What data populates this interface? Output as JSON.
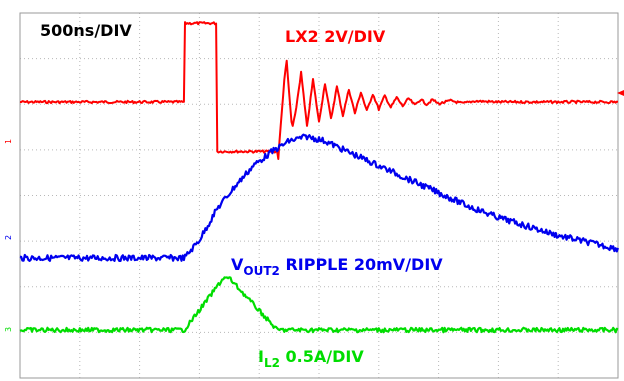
{
  "chart_data": {
    "type": "line",
    "title": "",
    "timebase_label": "500ns/DIV",
    "x_divisions": 10,
    "y_divisions": 8,
    "grid": true,
    "trigger_marker": "right-edge",
    "series": [
      {
        "name": "LX2 2V/DIV",
        "label_main": "LX2 2V/DIV",
        "color": "#ff0000",
        "channel_marker": "1",
        "points": [
          [
            0,
            0
          ],
          [
            2.75,
            0
          ],
          [
            2.76,
            1.75
          ],
          [
            3.28,
            1.75
          ],
          [
            3.29,
            -1.1
          ],
          [
            4.3,
            -1.1
          ],
          [
            4.32,
            -1.25
          ],
          [
            4.35,
            -0.7
          ],
          [
            4.38,
            -0.2
          ],
          [
            4.42,
            0.5
          ],
          [
            4.46,
            0.9
          ],
          [
            4.5,
            0.2
          ],
          [
            4.55,
            -0.6
          ],
          [
            4.6,
            -0.3
          ],
          [
            4.7,
            0.65
          ],
          [
            4.8,
            -0.55
          ],
          [
            4.9,
            0.5
          ],
          [
            5.0,
            -0.45
          ],
          [
            5.1,
            0.42
          ],
          [
            5.2,
            -0.38
          ],
          [
            5.3,
            0.34
          ],
          [
            5.4,
            -0.3
          ],
          [
            5.5,
            0.28
          ],
          [
            5.6,
            -0.25
          ],
          [
            5.7,
            0.22
          ],
          [
            5.8,
            -0.2
          ],
          [
            5.9,
            0.18
          ],
          [
            6.0,
            -0.16
          ],
          [
            6.1,
            0.14
          ],
          [
            6.2,
            -0.12
          ],
          [
            6.3,
            0.1
          ],
          [
            6.4,
            -0.09
          ],
          [
            6.5,
            0.08
          ],
          [
            6.6,
            -0.07
          ],
          [
            6.7,
            0.06
          ],
          [
            6.8,
            -0.05
          ],
          [
            6.9,
            0.05
          ],
          [
            7.0,
            -0.04
          ],
          [
            7.2,
            0.03
          ],
          [
            7.4,
            -0.03
          ],
          [
            7.6,
            0.02
          ],
          [
            8.0,
            0
          ],
          [
            10,
            0
          ]
        ]
      },
      {
        "name": "VOUT2 RIPPLE 20mV/DIV",
        "label_main": "V",
        "label_sub": "OUT2",
        "label_rest": " RIPPLE 20mV/DIV",
        "color": "#0000ee",
        "channel_marker": "2",
        "points": [
          [
            0,
            0
          ],
          [
            2.75,
            0
          ],
          [
            3.0,
            0.4
          ],
          [
            3.3,
            1.1
          ],
          [
            3.6,
            1.6
          ],
          [
            3.9,
            2.05
          ],
          [
            4.2,
            2.35
          ],
          [
            4.5,
            2.6
          ],
          [
            4.8,
            2.7
          ],
          [
            5.1,
            2.6
          ],
          [
            5.5,
            2.35
          ],
          [
            6.0,
            2.05
          ],
          [
            6.5,
            1.75
          ],
          [
            7.0,
            1.45
          ],
          [
            7.5,
            1.15
          ],
          [
            8.0,
            0.9
          ],
          [
            8.5,
            0.7
          ],
          [
            9.0,
            0.5
          ],
          [
            9.5,
            0.35
          ],
          [
            10,
            0.2
          ]
        ]
      },
      {
        "name": "IL2 0.5A/DIV",
        "label_main": "I",
        "label_sub": "L2",
        "label_rest": " 0.5A/DIV",
        "color": "#00dd00",
        "channel_marker": "3",
        "points": [
          [
            0,
            0
          ],
          [
            2.75,
            0
          ],
          [
            3.4,
            1.15
          ],
          [
            3.5,
            1.15
          ],
          [
            4.3,
            0
          ],
          [
            10,
            0
          ]
        ]
      }
    ]
  }
}
